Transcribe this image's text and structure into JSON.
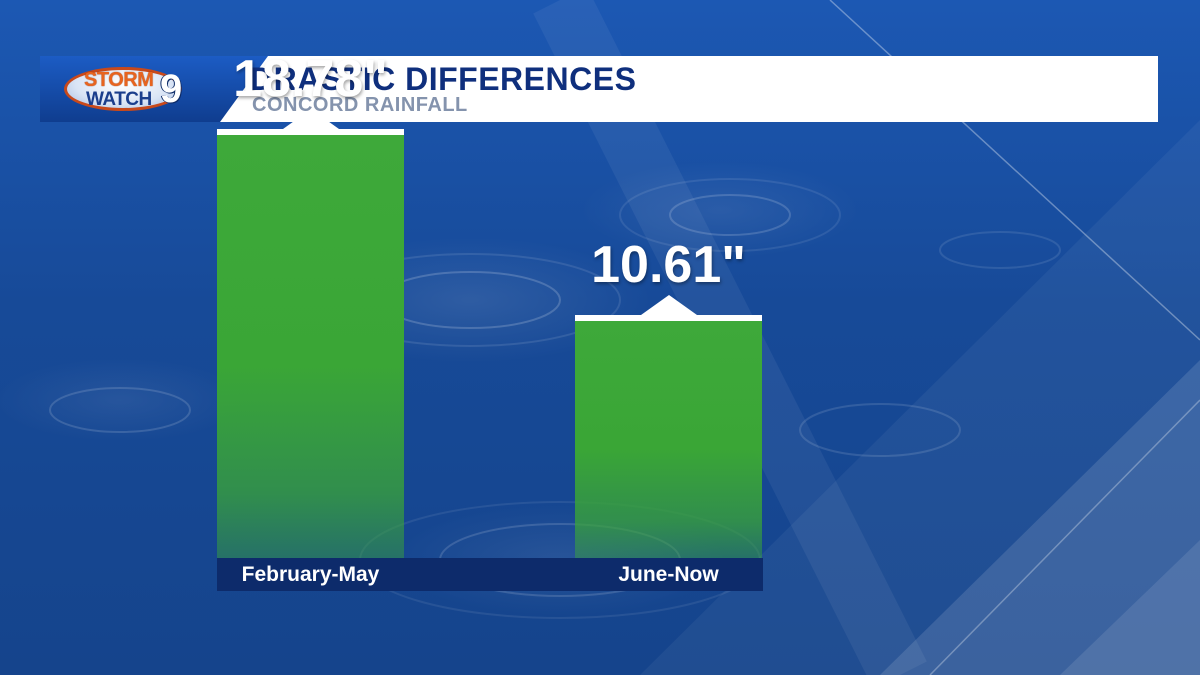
{
  "header": {
    "logo": {
      "storm": "STORM",
      "watch": "WATCH",
      "number": "9"
    },
    "title": "DRASTIC DIFFERENCES",
    "subtitle": "CONCORD RAINFALL"
  },
  "colors": {
    "bar": "#3ea93a",
    "header_text": "#0f2f7d",
    "category_band": "#0d2b6b"
  },
  "chart_data": {
    "type": "bar",
    "categories": [
      "February-May",
      "June-Now"
    ],
    "values": [
      18.78,
      10.61
    ],
    "value_labels": [
      "18.78\"",
      "10.61\""
    ],
    "title": "",
    "xlabel": "",
    "ylabel": "",
    "ylim": [
      0,
      21
    ]
  }
}
